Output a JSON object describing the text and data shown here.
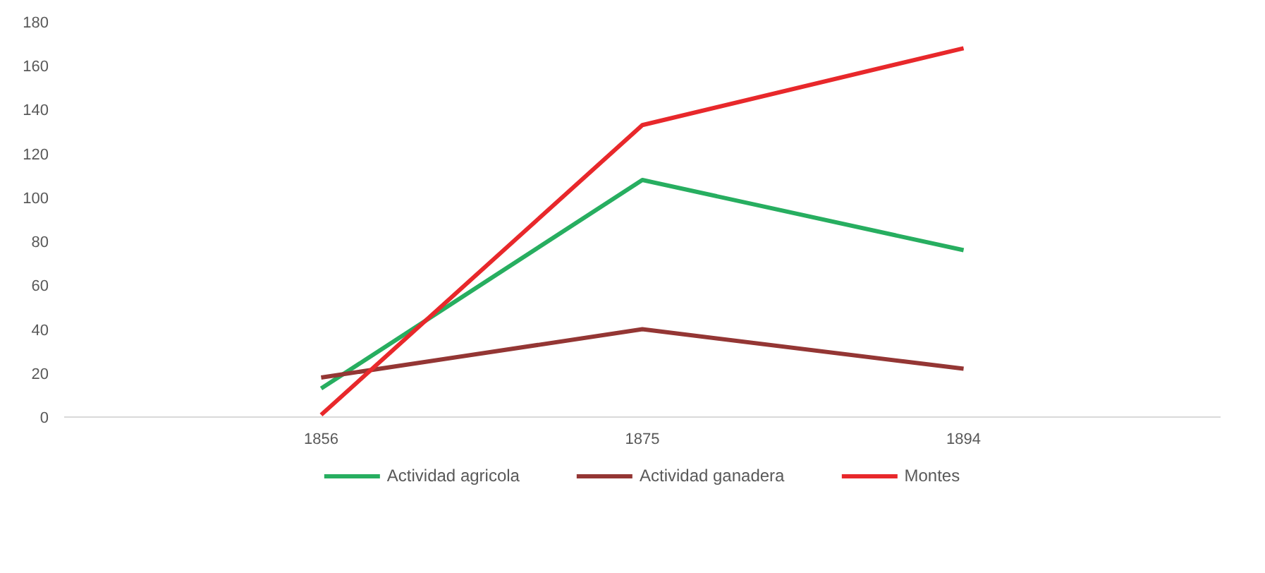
{
  "chart_data": {
    "type": "line",
    "categories": [
      "1856",
      "1875",
      "1894"
    ],
    "series": [
      {
        "name": "Actividad agricola",
        "color": "#27ae60",
        "values": [
          13,
          108,
          76
        ]
      },
      {
        "name": "Actividad ganadera",
        "color": "#943634",
        "values": [
          18,
          40,
          22
        ]
      },
      {
        "name": "Montes",
        "color": "#e8282b",
        "values": [
          1,
          133,
          168
        ]
      }
    ],
    "ylim": [
      0,
      180
    ],
    "yticks": [
      0,
      20,
      40,
      60,
      80,
      100,
      120,
      140,
      160,
      180
    ],
    "grid": false,
    "legend": "bottom",
    "marker": "none",
    "line_style": "solid"
  }
}
